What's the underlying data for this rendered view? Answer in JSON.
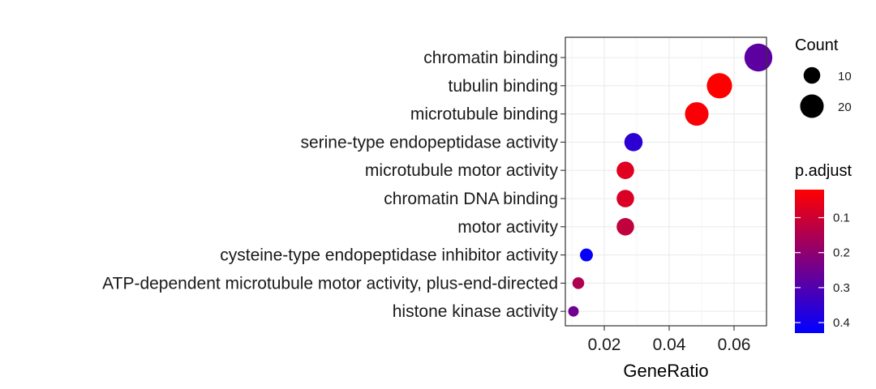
{
  "chart_data": {
    "type": "scatter",
    "title": "",
    "xlabel": "GeneRatio",
    "ylabel": "",
    "xlim": [
      0.008,
      0.07
    ],
    "x_ticks": [
      0.02,
      0.04,
      0.06
    ],
    "x_tick_labels": [
      "0.02",
      "0.04",
      "0.06"
    ],
    "grid": true,
    "categories": [
      "chromatin binding",
      "tubulin binding",
      "microtubule binding",
      "serine-type endopeptidase activity",
      "microtubule motor activity",
      "chromatin DNA binding",
      "motor activity",
      "cysteine-type endopeptidase inhibitor activity",
      "ATP-dependent microtubule motor activity, plus-end-directed",
      "histone kinase activity"
    ],
    "points": [
      {
        "category": "chromatin binding",
        "x": 0.0675,
        "count": 28,
        "p_adjust": 0.28
      },
      {
        "category": "tubulin binding",
        "x": 0.0555,
        "count": 23,
        "p_adjust": 0.02
      },
      {
        "category": "microtubule binding",
        "x": 0.0485,
        "count": 20,
        "p_adjust": 0.03
      },
      {
        "category": "serine-type endopeptidase activity",
        "x": 0.029,
        "count": 12,
        "p_adjust": 0.36
      },
      {
        "category": "microtubule motor activity",
        "x": 0.0265,
        "count": 11,
        "p_adjust": 0.07
      },
      {
        "category": "chromatin DNA binding",
        "x": 0.0265,
        "count": 11,
        "p_adjust": 0.08
      },
      {
        "category": "motor activity",
        "x": 0.0265,
        "count": 11,
        "p_adjust": 0.12
      },
      {
        "category": "cysteine-type endopeptidase inhibitor activity",
        "x": 0.0145,
        "count": 6,
        "p_adjust": 0.42
      },
      {
        "category": "ATP-dependent microtubule motor activity, plus-end-directed",
        "x": 0.012,
        "count": 5,
        "p_adjust": 0.15
      },
      {
        "category": "histone kinase activity",
        "x": 0.0105,
        "count": 4,
        "p_adjust": 0.25
      }
    ],
    "size_legend": {
      "title": "Count",
      "entries": [
        {
          "label": "10",
          "value": 10
        },
        {
          "label": "20",
          "value": 20
        }
      ]
    },
    "color_legend": {
      "title": "p.adjust",
      "range": [
        0.02,
        0.43
      ],
      "ticks": [
        0.1,
        0.2,
        0.3,
        0.4
      ],
      "tick_labels": [
        "0.1",
        "0.2",
        "0.3",
        "0.4"
      ],
      "low_color": "#ff0000",
      "high_color": "#0000ff"
    },
    "legend_position": "right"
  }
}
